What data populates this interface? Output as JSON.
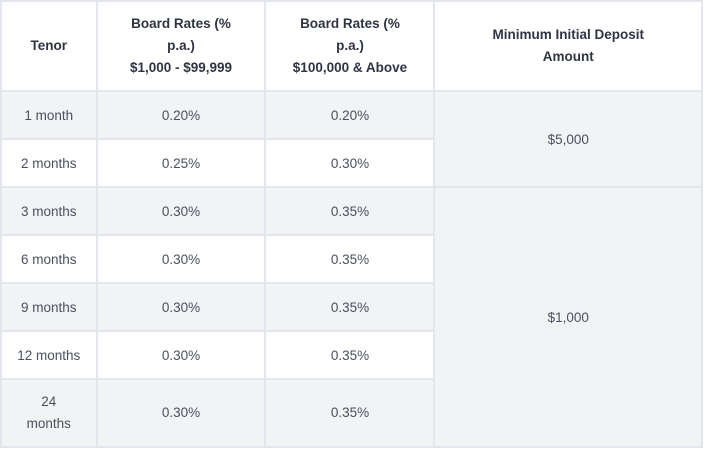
{
  "headers": {
    "tenor": "Tenor",
    "rate1_l1": "Board Rates (%",
    "rate1_l2": "p.a.)",
    "rate1_l3": "$1,000 - $99,999",
    "rate2_l1": "Board Rates (%",
    "rate2_l2": "p.a.)",
    "rate2_l3": "$100,000 & Above",
    "deposit_l1": "Minimum Initial Deposit",
    "deposit_l2": "Amount"
  },
  "rows": [
    {
      "tenor": "1 month",
      "rate1": "0.20%",
      "rate2": "0.20%"
    },
    {
      "tenor": "2 months",
      "rate1": "0.25%",
      "rate2": "0.30%"
    },
    {
      "tenor": "3 months",
      "rate1": "0.30%",
      "rate2": "0.35%"
    },
    {
      "tenor": "6 months",
      "rate1": "0.30%",
      "rate2": "0.35%"
    },
    {
      "tenor": "9 months",
      "rate1": "0.30%",
      "rate2": "0.35%"
    },
    {
      "tenor": "12 months",
      "rate1": "0.30%",
      "rate2": "0.35%"
    },
    {
      "tenor_l1": "24",
      "tenor_l2": "months",
      "rate1": "0.30%",
      "rate2": "0.35%"
    }
  ],
  "deposits": {
    "group1": "$5,000",
    "group2": "$1,000"
  },
  "colors": {
    "border": "#e3e6ec",
    "shade": "#f2f3f5"
  }
}
